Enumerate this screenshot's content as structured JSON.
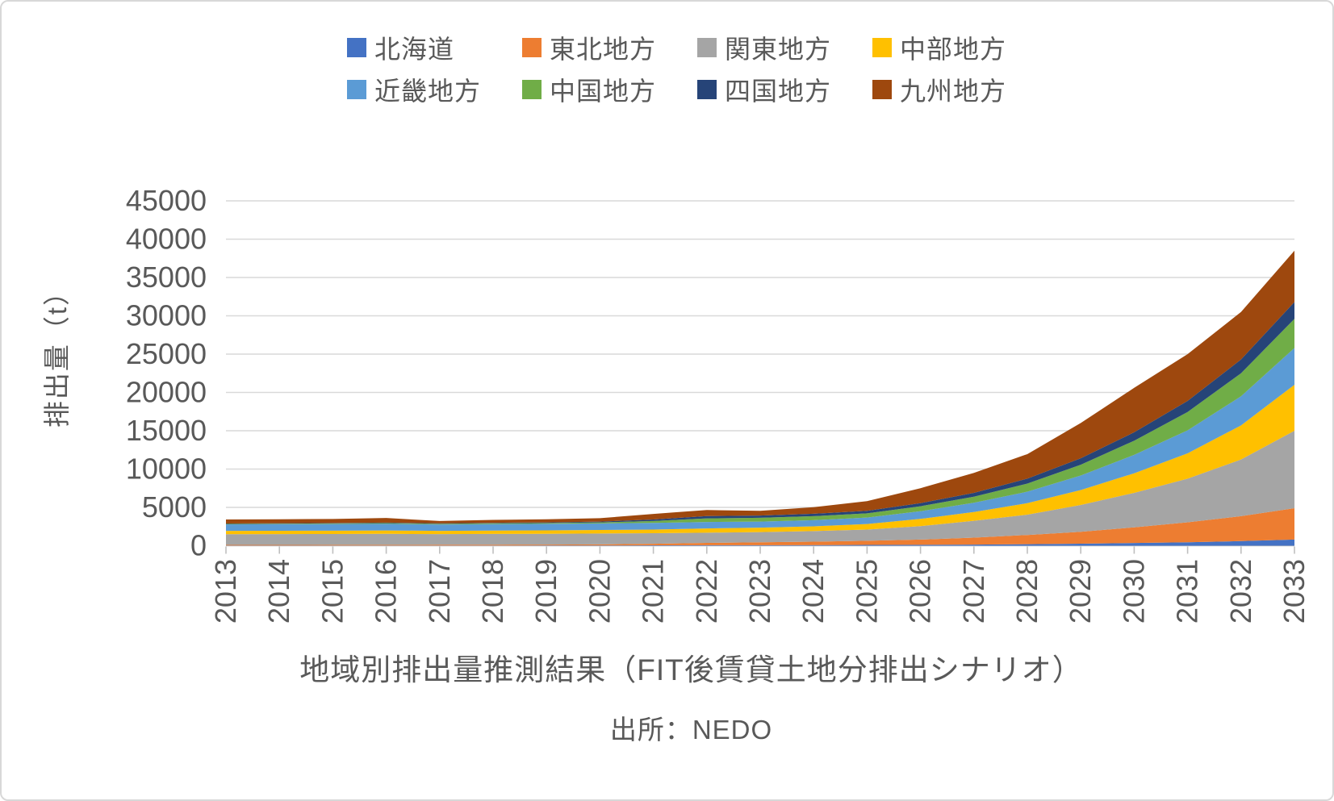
{
  "figure": {
    "title": "地域別排出量推測結果（FIT後賃貸土地分排出シナリオ）",
    "source": "出所：NEDO"
  },
  "chart_data": {
    "type": "area",
    "stacked": true,
    "title": "地域別排出量推測結果（FIT後賃貸土地分排出シナリオ）",
    "source_note": "出所：NEDO",
    "xlabel": "",
    "ylabel": "排出量（t）",
    "ylim": [
      0,
      45000
    ],
    "ytick_step": 5000,
    "yticks": [
      0,
      5000,
      10000,
      15000,
      20000,
      25000,
      30000,
      35000,
      40000,
      45000
    ],
    "grid": true,
    "legend_position": "top-center",
    "legend_rows": [
      [
        "北海道",
        "東北地方",
        "関東地方",
        "中部地方"
      ],
      [
        "近畿地方",
        "中国地方",
        "四国地方",
        "九州地方"
      ]
    ],
    "x": [
      2013,
      2014,
      2015,
      2016,
      2017,
      2018,
      2019,
      2020,
      2021,
      2022,
      2023,
      2024,
      2025,
      2026,
      2027,
      2028,
      2029,
      2030,
      2031,
      2032,
      2033
    ],
    "series": [
      {
        "name": "北海道",
        "color": "#4472C4",
        "values": [
          20,
          20,
          25,
          25,
          30,
          30,
          35,
          40,
          50,
          60,
          70,
          80,
          100,
          120,
          150,
          200,
          260,
          350,
          450,
          600,
          800
        ]
      },
      {
        "name": "東北地方",
        "color": "#ED7D31",
        "values": [
          80,
          85,
          90,
          95,
          100,
          105,
          110,
          130,
          200,
          310,
          380,
          450,
          540,
          680,
          900,
          1200,
          1550,
          2050,
          2600,
          3250,
          4100
        ]
      },
      {
        "name": "関東地方",
        "color": "#A5A5A5",
        "values": [
          1400,
          1410,
          1410,
          1430,
          1380,
          1400,
          1410,
          1420,
          1380,
          1330,
          1330,
          1380,
          1470,
          1750,
          2200,
          2650,
          3500,
          4500,
          5700,
          7400,
          10100
        ]
      },
      {
        "name": "中部地方",
        "color": "#FFC000",
        "values": [
          430,
          430,
          440,
          440,
          430,
          440,
          450,
          460,
          480,
          550,
          580,
          620,
          720,
          950,
          1150,
          1500,
          1950,
          2550,
          3300,
          4450,
          6000
        ]
      },
      {
        "name": "近畿地方",
        "color": "#5B9BD5",
        "values": [
          850,
          860,
          860,
          870,
          820,
          840,
          850,
          860,
          870,
          840,
          790,
          800,
          840,
          1000,
          1200,
          1500,
          1900,
          2400,
          3000,
          3800,
          4800
        ]
      },
      {
        "name": "中国地方",
        "color": "#70AD47",
        "values": [
          60,
          70,
          80,
          90,
          90,
          100,
          110,
          130,
          240,
          470,
          490,
          520,
          550,
          650,
          800,
          1050,
          1400,
          1850,
          2400,
          3000,
          3800
        ]
      },
      {
        "name": "四国地方",
        "color": "#264478",
        "values": [
          50,
          55,
          60,
          65,
          70,
          75,
          80,
          100,
          200,
          310,
          300,
          320,
          330,
          400,
          500,
          650,
          850,
          1100,
          1450,
          1800,
          2200
        ]
      },
      {
        "name": "九州地方",
        "color": "#9E480E",
        "values": [
          530,
          520,
          520,
          600,
          300,
          380,
          400,
          450,
          730,
          790,
          610,
          850,
          1270,
          1950,
          2600,
          3200,
          4600,
          5800,
          6100,
          6200,
          6700
        ]
      }
    ],
    "axis_text_color": "#595959",
    "gridline_color": "#D9D9D9",
    "axis_line_color": "#BFBFBF"
  }
}
